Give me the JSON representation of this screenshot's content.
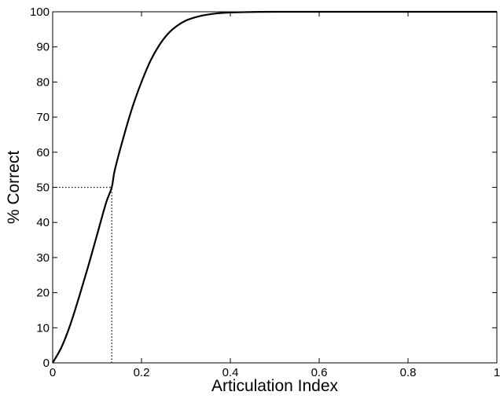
{
  "chart_data": {
    "type": "line",
    "title": "",
    "xlabel": "Articulation Index",
    "ylabel": "% Correct",
    "xlim": [
      0,
      1
    ],
    "ylim": [
      0,
      100
    ],
    "grid": false,
    "x_ticks": [
      "0",
      "0.2",
      "0.4",
      "0.6",
      "0.8",
      "1"
    ],
    "x_tick_values": [
      0,
      0.2,
      0.4,
      0.6,
      0.8,
      1
    ],
    "y_ticks": [
      "0",
      "10",
      "20",
      "30",
      "40",
      "50",
      "60",
      "70",
      "80",
      "90",
      "100"
    ],
    "y_tick_values": [
      0,
      10,
      20,
      30,
      40,
      50,
      60,
      70,
      80,
      90,
      100
    ],
    "series": [
      {
        "x": [
          0,
          0.02,
          0.04,
          0.06,
          0.08,
          0.1,
          0.12,
          0.133,
          0.14,
          0.16,
          0.18,
          0.2,
          0.22,
          0.24,
          0.26,
          0.28,
          0.3,
          0.32,
          0.34,
          0.36,
          0.38,
          0.4,
          0.45,
          0.5,
          0.6,
          0.7,
          0.8,
          0.9,
          1.0
        ],
        "values": [
          0,
          4.5,
          11,
          19,
          27.5,
          36.5,
          45.5,
          50,
          55,
          64.5,
          73,
          80,
          86,
          90.5,
          93.8,
          96,
          97.5,
          98.4,
          99,
          99.4,
          99.65,
          99.8,
          99.95,
          100,
          100,
          100,
          100,
          100,
          100
        ]
      }
    ],
    "reference_lines": [
      {
        "style": "dotted",
        "x": [
          0,
          0.133
        ],
        "y": [
          50,
          50
        ]
      },
      {
        "style": "dotted",
        "x": [
          0.133,
          0.133
        ],
        "y": [
          0,
          50
        ]
      }
    ]
  }
}
